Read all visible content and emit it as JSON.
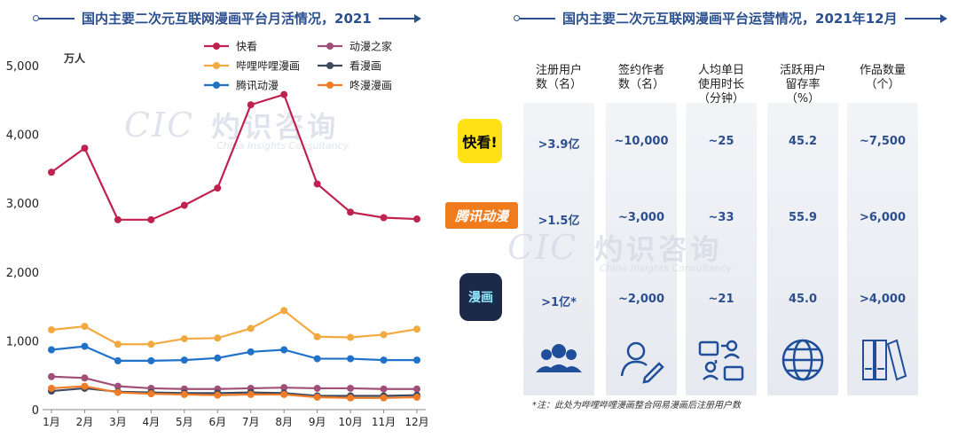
{
  "left": {
    "title": "国内主要二次元互联网漫画平台月活情况，2021"
  },
  "right": {
    "title": "国内主要二次元互联网漫画平台运营情况，2021年12月",
    "columns": [
      "注册用户\n数（名）",
      "签约作者\n数（名）",
      "人均单日\n使用时长\n（分钟）",
      "活跃用户\n留存率\n（%）",
      "作品数量\n（个）"
    ],
    "rows": [
      {
        "platform": "快看",
        "logo_text": "快看!",
        "values": [
          ">3.9亿",
          "~10,000",
          "~25",
          "45.2",
          "~7,500"
        ]
      },
      {
        "platform": "腾讯动漫",
        "logo_text": "腾讯动漫",
        "values": [
          ">1.5亿",
          "~3,000",
          "~33",
          "55.9",
          ">6,000"
        ]
      },
      {
        "platform": "哔哩哔哩漫画",
        "logo_text": "漫画",
        "values": [
          ">1亿*",
          "~2,000",
          "~21",
          "45.0",
          ">4,000"
        ]
      }
    ],
    "icons": [
      "users-group-icon",
      "user-pen-icon",
      "user-sync-icon",
      "globe-icon",
      "binders-icon"
    ],
    "note": "*注：此处为哔哩哔哩漫画整合网易漫画后注册用户数"
  },
  "watermark": {
    "logo": "CIC",
    "cn": "灼识咨询",
    "en": "China Insights Consultancy"
  },
  "chart_data": {
    "type": "line",
    "title": "国内主要二次元互联网漫画平台月活情况，2021",
    "ylabel": "万人",
    "xlabel": "",
    "categories": [
      "1月",
      "2月",
      "3月",
      "4月",
      "5月",
      "6月",
      "7月",
      "8月",
      "9月",
      "10月",
      "11月",
      "12月"
    ],
    "yticks": [
      "0",
      "1,000",
      "2,000",
      "3,000",
      "4,000",
      "5,000"
    ],
    "ylim": [
      0,
      5000
    ],
    "legend": "top-right",
    "grid": false,
    "series": [
      {
        "name": "快看",
        "color": "#c0224f",
        "values": [
          3450,
          3800,
          2760,
          2760,
          2970,
          3220,
          4430,
          4580,
          3280,
          2870,
          2790,
          2770
        ]
      },
      {
        "name": "动漫之家",
        "color": "#a05078",
        "values": [
          480,
          460,
          340,
          310,
          300,
          300,
          310,
          320,
          310,
          310,
          300,
          300
        ]
      },
      {
        "name": "哔哩哔哩漫画",
        "color": "#f2a940",
        "values": [
          1160,
          1210,
          950,
          950,
          1030,
          1040,
          1180,
          1440,
          1060,
          1050,
          1090,
          1170
        ]
      },
      {
        "name": "看漫画",
        "color": "#3d4a60",
        "values": [
          270,
          310,
          260,
          250,
          240,
          240,
          250,
          240,
          200,
          200,
          200,
          210
        ]
      },
      {
        "name": "腾讯动漫",
        "color": "#1f72c8",
        "values": [
          870,
          920,
          710,
          710,
          720,
          750,
          840,
          870,
          740,
          740,
          720,
          720
        ]
      },
      {
        "name": "咚漫漫画",
        "color": "#f07c28",
        "values": [
          310,
          340,
          250,
          230,
          220,
          210,
          220,
          220,
          180,
          170,
          170,
          180
        ]
      }
    ]
  }
}
